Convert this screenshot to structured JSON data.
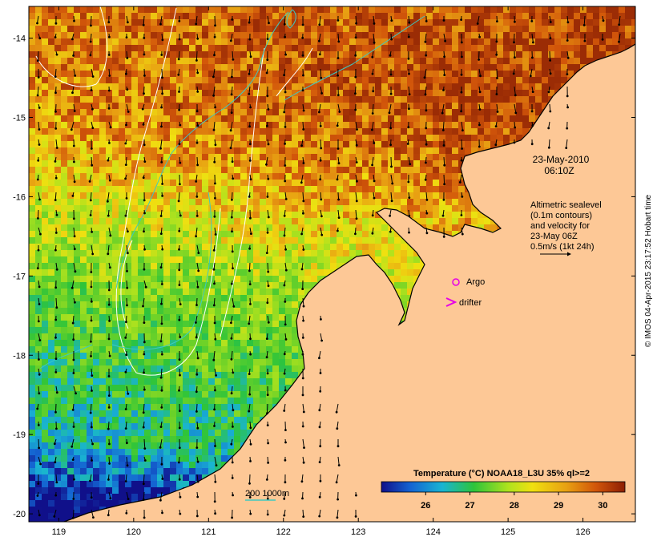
{
  "map": {
    "lat_ticks": [
      "-14",
      "-15",
      "-16",
      "-17",
      "-18",
      "-19",
      "-20"
    ],
    "lon_ticks": [
      "119",
      "120",
      "121",
      "122",
      "123",
      "124",
      "125",
      "126"
    ],
    "lon_range": [
      118.6,
      126.7
    ],
    "lat_range": [
      -13.6,
      -20.1
    ]
  },
  "annotations": {
    "date": "23-May-2010",
    "time": "06:10Z",
    "legend_lines": [
      "Altimetric sealevel",
      "(0.1m contours)",
      "and velocity for",
      "23-May 06Z",
      "0.5m/s (1kt 24h)"
    ],
    "argo_label": "Argo",
    "drifter_label": "drifter",
    "bathy_label": "200  1000m"
  },
  "colorbar": {
    "title": "Temperature (°C) NOAA18_L3U 35% ql>=2",
    "ticks": [
      "26",
      "27",
      "28",
      "29",
      "30"
    ],
    "range": [
      25.0,
      30.5
    ]
  },
  "credit": "© IMOS 04-Apr-2015 23:17:52 Hobart time",
  "colors": {
    "land": "#fdc896",
    "sst_hot": "#9b2c05",
    "sst_warm": "#e28a12",
    "sst_mid": "#dede10",
    "sst_cool": "#2ec43a",
    "sst_cold": "#1464d2",
    "contour": "#ffffff",
    "bathy": "#3ec9c0",
    "argo": "#e600e6"
  }
}
